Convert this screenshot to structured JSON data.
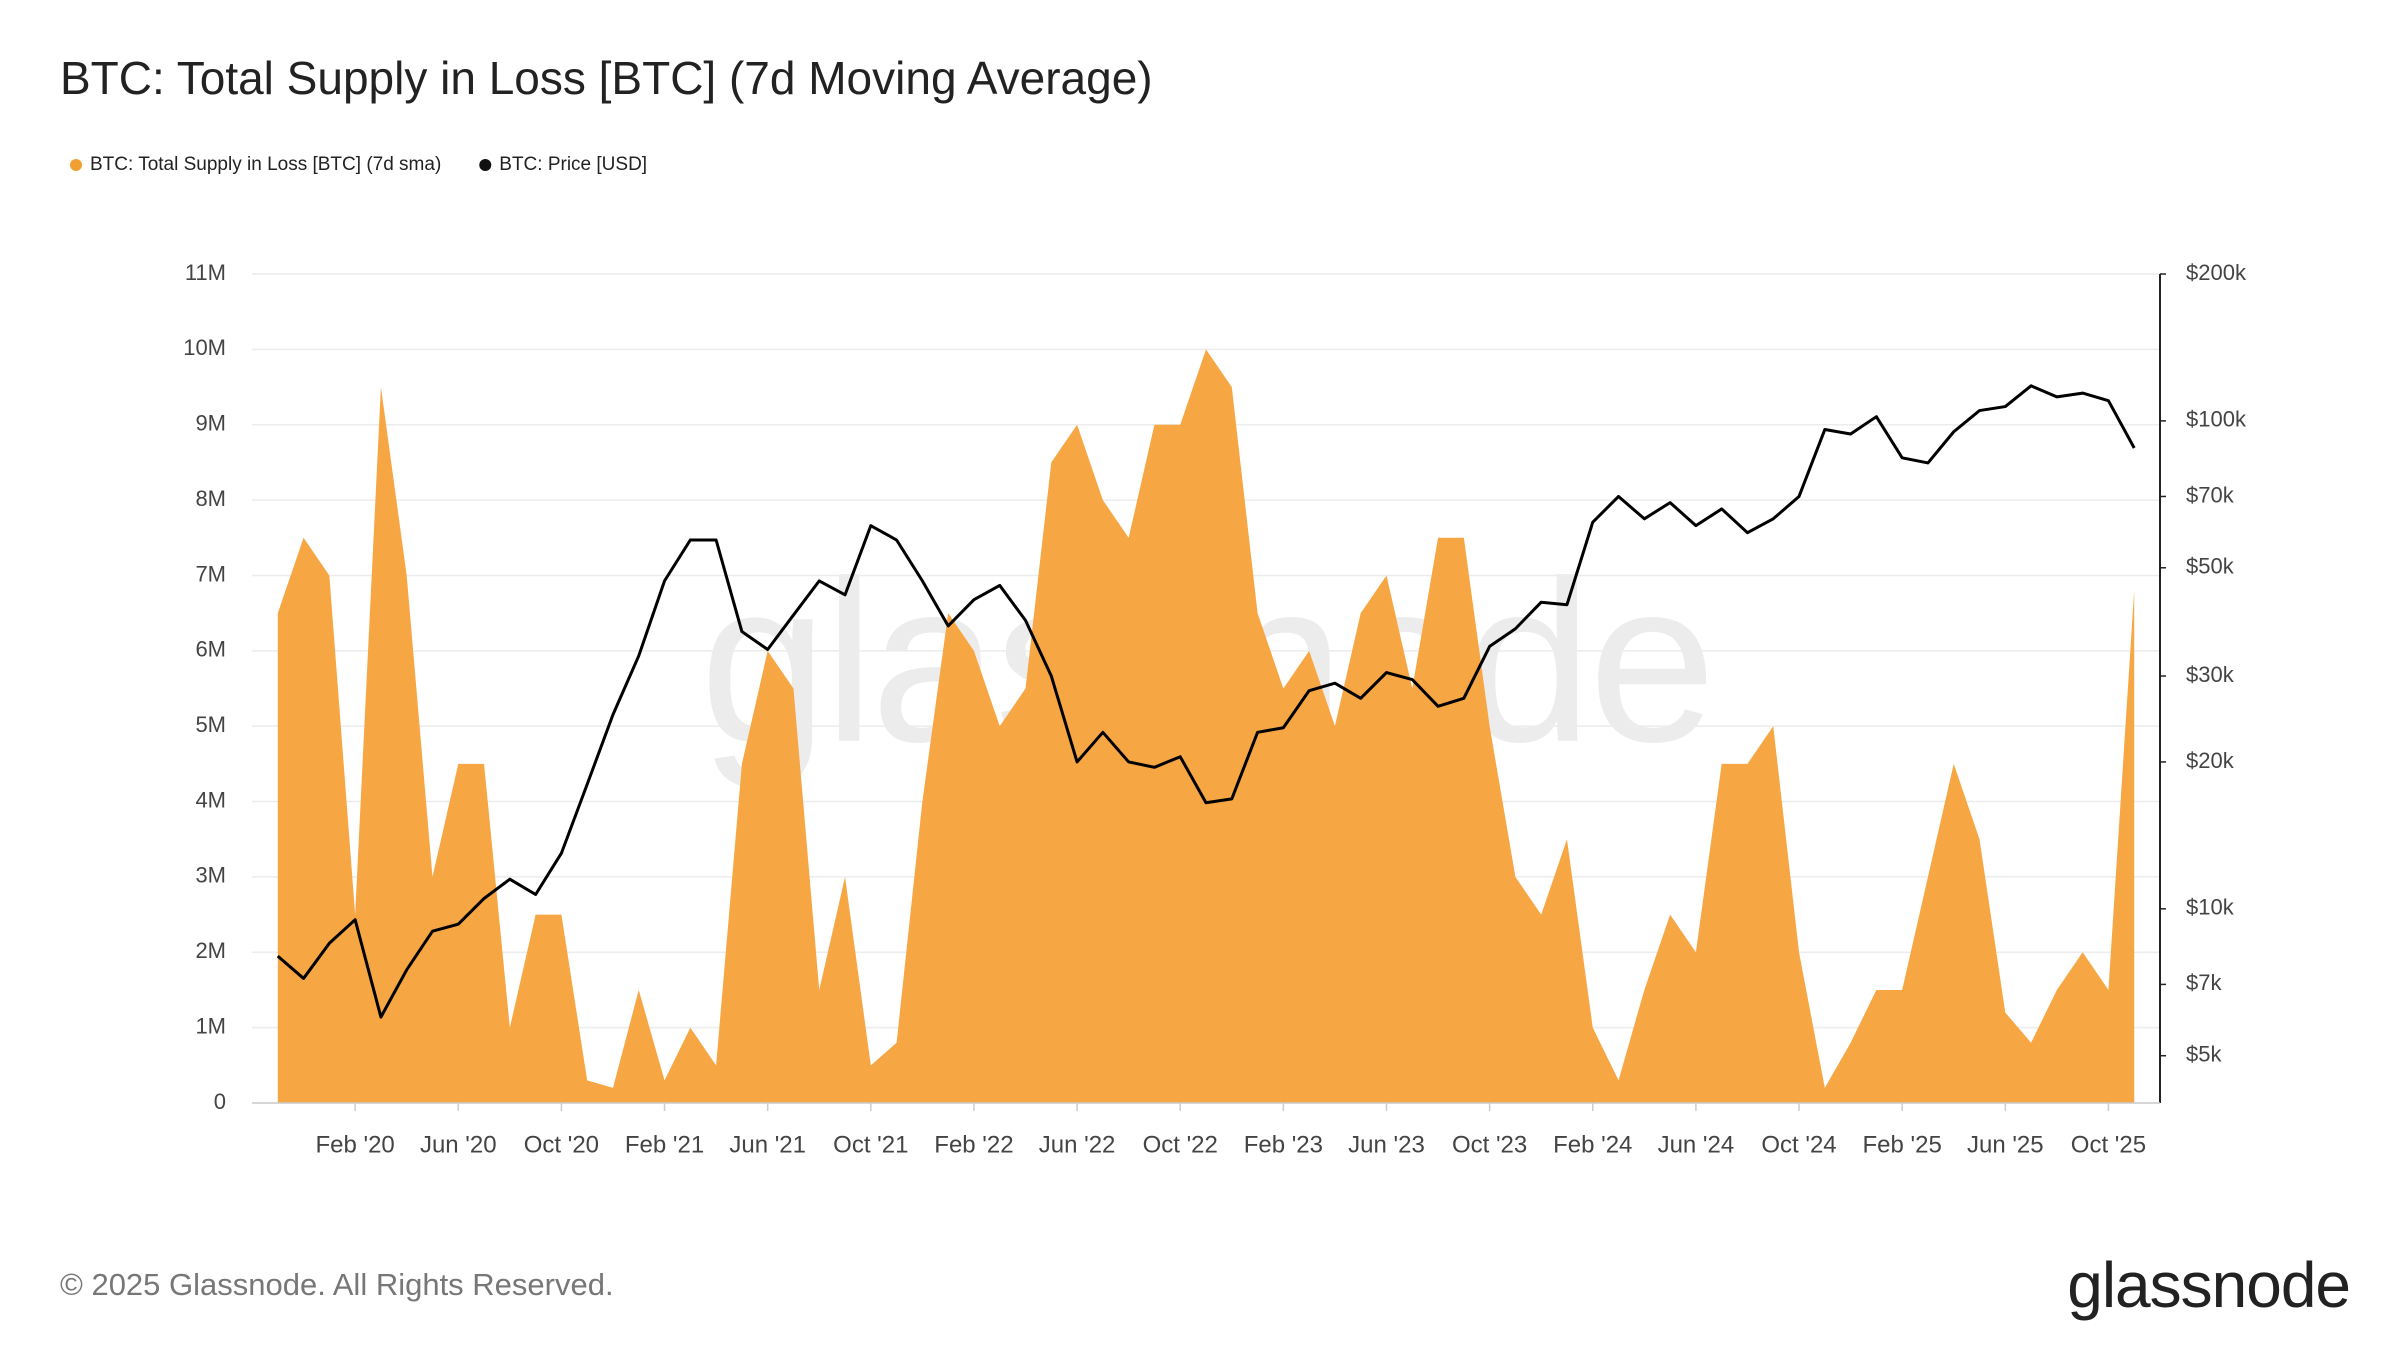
{
  "chart_data": {
    "type": "area",
    "title": "BTC: Total Supply in Loss [BTC] (7d Moving Average)",
    "watermark": "glassnode",
    "footer": "© 2025 Glassnode. All Rights Reserved.",
    "logo": "glassnode",
    "grid": true,
    "legend": "top-left",
    "y2scale": "log",
    "x": [
      "2019-11",
      "2019-12",
      "2020-01",
      "2020-02",
      "2020-03",
      "2020-04",
      "2020-05",
      "2020-06",
      "2020-07",
      "2020-08",
      "2020-09",
      "2020-10",
      "2020-11",
      "2020-12",
      "2021-01",
      "2021-02",
      "2021-03",
      "2021-04",
      "2021-05",
      "2021-06",
      "2021-07",
      "2021-08",
      "2021-09",
      "2021-10",
      "2021-11",
      "2021-12",
      "2022-01",
      "2022-02",
      "2022-03",
      "2022-04",
      "2022-05",
      "2022-06",
      "2022-07",
      "2022-08",
      "2022-09",
      "2022-10",
      "2022-11",
      "2022-12",
      "2023-01",
      "2023-02",
      "2023-03",
      "2023-04",
      "2023-05",
      "2023-06",
      "2023-07",
      "2023-08",
      "2023-09",
      "2023-10",
      "2023-11",
      "2023-12",
      "2024-01",
      "2024-02",
      "2024-03",
      "2024-04",
      "2024-05",
      "2024-06",
      "2024-07",
      "2024-08",
      "2024-09",
      "2024-10",
      "2024-11",
      "2024-12",
      "2025-01",
      "2025-02",
      "2025-03",
      "2025-04",
      "2025-05",
      "2025-06",
      "2025-07",
      "2025-08",
      "2025-09",
      "2025-10",
      "2025-11"
    ],
    "series": [
      {
        "name": "BTC: Total Supply in Loss [BTC] (7d sma)",
        "color": "#f7a644",
        "type": "area",
        "values": [
          6500000,
          7500000,
          7000000,
          2500000,
          9500000,
          7000000,
          3000000,
          4500000,
          4500000,
          1000000,
          2500000,
          2500000,
          300000,
          200000,
          1500000,
          300000,
          1000000,
          500000,
          4500000,
          6000000,
          5500000,
          1500000,
          3000000,
          500000,
          800000,
          4000000,
          6500000,
          6000000,
          5000000,
          5500000,
          8500000,
          9000000,
          8000000,
          7500000,
          9000000,
          9000000,
          10000000,
          9500000,
          6500000,
          5500000,
          6000000,
          5000000,
          6500000,
          7000000,
          5500000,
          7500000,
          7500000,
          5000000,
          3000000,
          2500000,
          3500000,
          1000000,
          300000,
          1500000,
          2500000,
          2000000,
          4500000,
          4500000,
          5000000,
          2000000,
          200000,
          800000,
          1500000,
          1500000,
          3000000,
          4500000,
          3500000,
          1200000,
          800000,
          1500000,
          2000000,
          1500000,
          6800000
        ]
      },
      {
        "name": "BTC: Price [USD]",
        "color": "#000000",
        "type": "line",
        "axis": "y2",
        "values": [
          8000,
          7200,
          8500,
          9500,
          6000,
          7500,
          9000,
          9300,
          10500,
          11500,
          10700,
          13000,
          18000,
          25000,
          33000,
          47000,
          57000,
          57000,
          37000,
          34000,
          40000,
          47000,
          44000,
          61000,
          57000,
          47000,
          38000,
          43000,
          46000,
          39000,
          30000,
          20000,
          23000,
          20000,
          19500,
          20500,
          16500,
          16800,
          23000,
          23500,
          28000,
          29000,
          27000,
          30500,
          29500,
          26000,
          27000,
          34500,
          37500,
          42500,
          42000,
          62000,
          70000,
          63000,
          68000,
          61000,
          66000,
          59000,
          63000,
          70000,
          96000,
          94000,
          102000,
          84000,
          82000,
          95000,
          105000,
          107000,
          118000,
          112000,
          114000,
          110000,
          88000
        ]
      }
    ],
    "xlim": [
      "2019-10",
      "2025-12"
    ],
    "xticks": [
      {
        "value": "2020-02",
        "label": "Feb '20"
      },
      {
        "value": "2020-06",
        "label": "Jun '20"
      },
      {
        "value": "2020-10",
        "label": "Oct '20"
      },
      {
        "value": "2021-02",
        "label": "Feb '21"
      },
      {
        "value": "2021-06",
        "label": "Jun '21"
      },
      {
        "value": "2021-10",
        "label": "Oct '21"
      },
      {
        "value": "2022-02",
        "label": "Feb '22"
      },
      {
        "value": "2022-06",
        "label": "Jun '22"
      },
      {
        "value": "2022-10",
        "label": "Oct '22"
      },
      {
        "value": "2023-02",
        "label": "Feb '23"
      },
      {
        "value": "2023-06",
        "label": "Jun '23"
      },
      {
        "value": "2023-10",
        "label": "Oct '23"
      },
      {
        "value": "2024-02",
        "label": "Feb '24"
      },
      {
        "value": "2024-06",
        "label": "Jun '24"
      },
      {
        "value": "2024-10",
        "label": "Oct '24"
      },
      {
        "value": "2025-02",
        "label": "Feb '25"
      },
      {
        "value": "2025-06",
        "label": "Jun '25"
      },
      {
        "value": "2025-10",
        "label": "Oct '25"
      }
    ],
    "ylim": [
      0,
      11000000
    ],
    "yticks": [
      0,
      {
        "value": 1000000,
        "label": "1M"
      },
      {
        "value": 2000000,
        "label": "2M"
      },
      {
        "value": 3000000,
        "label": "3M"
      },
      {
        "value": 4000000,
        "label": "4M"
      },
      {
        "value": 5000000,
        "label": "5M"
      },
      {
        "value": 6000000,
        "label": "6M"
      },
      {
        "value": 7000000,
        "label": "7M"
      },
      {
        "value": 8000000,
        "label": "8M"
      },
      {
        "value": 9000000,
        "label": "9M"
      },
      {
        "value": 10000000,
        "label": "10M"
      },
      {
        "value": 11000000,
        "label": "11M"
      }
    ],
    "y2lim": [
      4000,
      200000
    ],
    "y2ticks": [
      {
        "value": 5000,
        "label": "$5k"
      },
      {
        "value": 7000,
        "label": "$7k"
      },
      {
        "value": 10000,
        "label": "$10k"
      },
      {
        "value": 20000,
        "label": "$20k"
      },
      {
        "value": 30000,
        "label": "$30k"
      },
      {
        "value": 50000,
        "label": "$50k"
      },
      {
        "value": 70000,
        "label": "$70k"
      },
      {
        "value": 100000,
        "label": "$100k"
      },
      {
        "value": 200000,
        "label": "$200k"
      }
    ]
  }
}
